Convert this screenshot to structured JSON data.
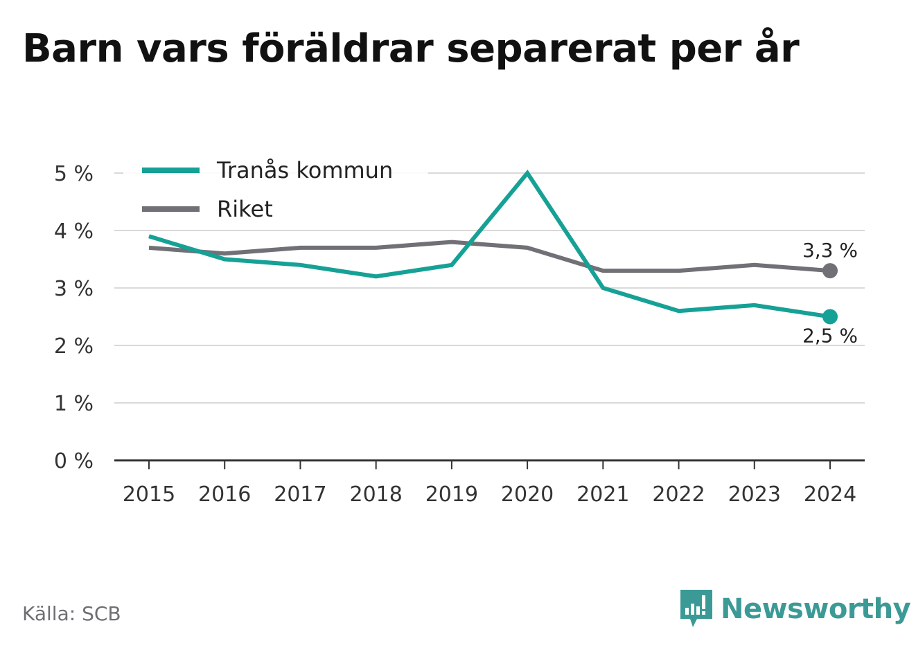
{
  "title": "Barn vars föräldrar separerat per år",
  "source": "Källa: SCB",
  "brand": "Newsworthy",
  "colors": {
    "tranas": "#16a196",
    "riket": "#717076",
    "grid": "#d9d9d9",
    "axis": "#333333",
    "brand": "#3c9a96"
  },
  "chart_data": {
    "type": "line",
    "x": [
      "2015",
      "2016",
      "2017",
      "2018",
      "2019",
      "2020",
      "2021",
      "2022",
      "2023",
      "2024"
    ],
    "ylim": [
      0,
      5
    ],
    "yticks": [
      0,
      1,
      2,
      3,
      4,
      5
    ],
    "ytick_labels": [
      "0 %",
      "1 %",
      "2 %",
      "3 %",
      "4 %",
      "5 %"
    ],
    "grid": true,
    "legend": "top-left",
    "series": [
      {
        "name": "Tranås kommun",
        "color": "#16a196",
        "values": [
          3.9,
          3.5,
          3.4,
          3.2,
          3.4,
          5.0,
          3.0,
          2.6,
          2.7,
          2.5
        ],
        "end_label": "2,5 %"
      },
      {
        "name": "Riket",
        "color": "#717076",
        "values": [
          3.7,
          3.6,
          3.7,
          3.7,
          3.8,
          3.7,
          3.3,
          3.3,
          3.4,
          3.3
        ],
        "end_label": "3,3 %"
      }
    ]
  }
}
